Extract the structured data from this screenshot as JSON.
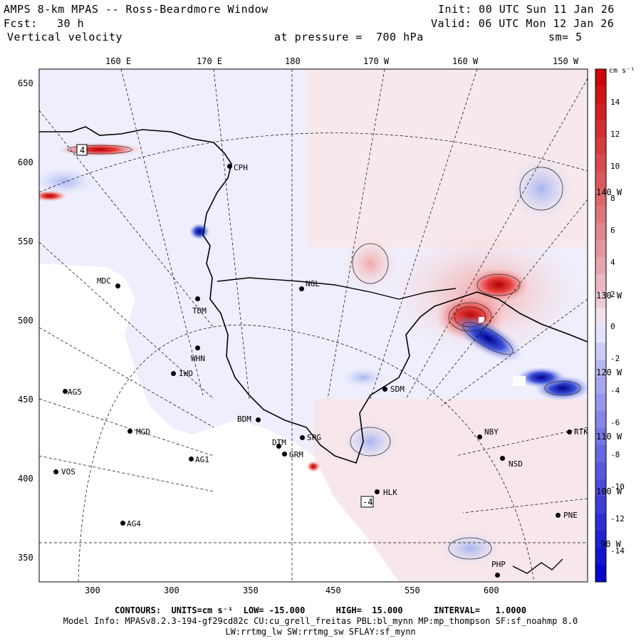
{
  "header": {
    "title": "AMPS 8-km MPAS -- Ross-Beardmore Window",
    "fcst_label": "Fcst:",
    "fcst_value": "30 h",
    "field": "Vertical velocity",
    "init": "Init: 00 UTC Sun 11 Jan 26",
    "valid": "Valid: 06 UTC Mon 12 Jan 26",
    "pressure": "at pressure =  700 hPa",
    "smooth": "sm= 5"
  },
  "top_lon_labels": [
    "160 E",
    "170 E",
    "180",
    "170 W",
    "160 W",
    "150 W"
  ],
  "right_lon_labels": [
    "140 W",
    "130 W",
    "120 W",
    "110 W",
    "100 W",
    "90 W"
  ],
  "x_ticks": [
    "300",
    "350",
    "400",
    "450",
    "500",
    "550",
    "600"
  ],
  "y_ticks": [
    "650",
    "600",
    "550",
    "500",
    "450",
    "400",
    "350"
  ],
  "colorbar": {
    "units": "cm s⁻¹",
    "labels": [
      "14",
      "12",
      "10",
      "8",
      "6",
      "4",
      "2",
      "0",
      "-2",
      "-4",
      "-6",
      "-8",
      "-10",
      "-12",
      "-14"
    ],
    "min": -15,
    "max": 15,
    "color_pos": "#cc0000",
    "color_neg": "#0000cc",
    "color_mid": "#f2f2ff"
  },
  "stations": [
    {
      "id": "CPH",
      "label": "CPH"
    },
    {
      "id": "NGL",
      "label": "NGL"
    },
    {
      "id": "MDC",
      "label": "MDC"
    },
    {
      "id": "TDM",
      "label": "TDM"
    },
    {
      "id": "WHN",
      "label": "WHN"
    },
    {
      "id": "IWO",
      "label": "IWO"
    },
    {
      "id": "AG5",
      "label": "AG5"
    },
    {
      "id": "SDM",
      "label": "SDM"
    },
    {
      "id": "BDM",
      "label": "BDM"
    },
    {
      "id": "MGD",
      "label": "MGD"
    },
    {
      "id": "SPG",
      "label": "SPG"
    },
    {
      "id": "DTM",
      "label": "DTM"
    },
    {
      "id": "GRM",
      "label": "GRM"
    },
    {
      "id": "AG1",
      "label": "AG1"
    },
    {
      "id": "VOS",
      "label": "VOS"
    },
    {
      "id": "NBY",
      "label": "NBY"
    },
    {
      "id": "RTK",
      "label": "RTK"
    },
    {
      "id": "NSD",
      "label": "NSD"
    },
    {
      "id": "HLK",
      "label": "HLK"
    },
    {
      "id": "AG4",
      "label": "AG4"
    },
    {
      "id": "PNE",
      "label": "PNE"
    },
    {
      "id": "PHP",
      "label": "PHP"
    }
  ],
  "annotations": {
    "box_top_left": "4",
    "box_bottom": "-4"
  },
  "footer": {
    "contours": "CONTOURS:  UNITS=cm s⁻¹  LOW= -15.000      HIGH=  15.000      INTERVAL=   1.0000",
    "model_info": "Model Info: MPASv8.2.3-194-gf29cd82c CU:cu_grell_freitas PBL:bl_mynn MP:mp_thompson SF:sf_noahmp 8.0",
    "model_info2": "LW:rrtmg_lw SW:rrtmg_sw SFLAY:sf_mynn"
  }
}
